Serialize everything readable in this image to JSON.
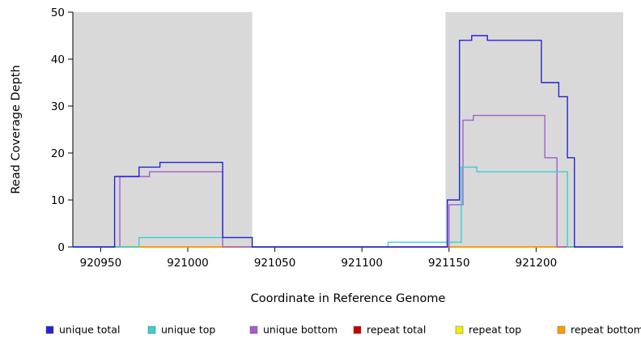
{
  "figure": {
    "background": "#ffffff"
  },
  "chart_data": {
    "type": "line",
    "title": "",
    "xlabel": "Coordinate in Reference Genome",
    "ylabel": "Read Coverage Depth",
    "xlim": [
      920934,
      921250
    ],
    "ylim": [
      0,
      50
    ],
    "xticks": [
      920950,
      921000,
      921050,
      921100,
      921150,
      921200
    ],
    "yticks": [
      0,
      10,
      20,
      30,
      40,
      50
    ],
    "grid": false,
    "legend_position": "bottom",
    "shade_color": "#d9d9d9",
    "shaded_regions": [
      [
        920934,
        921037
      ],
      [
        921148,
        921250
      ]
    ],
    "series": [
      {
        "name": "unique total",
        "color": "#2424cf",
        "points": [
          [
            920934,
            0
          ],
          [
            920958,
            0
          ],
          [
            920958,
            15
          ],
          [
            920972,
            15
          ],
          [
            920972,
            17
          ],
          [
            920984,
            17
          ],
          [
            920984,
            18
          ],
          [
            921020,
            18
          ],
          [
            921020,
            2
          ],
          [
            921037,
            2
          ],
          [
            921037,
            0
          ],
          [
            921149,
            0
          ],
          [
            921149,
            10
          ],
          [
            921156,
            10
          ],
          [
            921156,
            44
          ],
          [
            921163,
            44
          ],
          [
            921163,
            45
          ],
          [
            921172,
            45
          ],
          [
            921172,
            44
          ],
          [
            921203,
            44
          ],
          [
            921203,
            35
          ],
          [
            921213,
            35
          ],
          [
            921213,
            32
          ],
          [
            921218,
            32
          ],
          [
            921218,
            19
          ],
          [
            921222,
            19
          ],
          [
            921222,
            0
          ],
          [
            921250,
            0
          ]
        ]
      },
      {
        "name": "unique top",
        "color": "#3bcfcf",
        "points": [
          [
            920934,
            0
          ],
          [
            920972,
            0
          ],
          [
            920972,
            2
          ],
          [
            921037,
            2
          ],
          [
            921037,
            0
          ],
          [
            921115,
            0
          ],
          [
            921115,
            1
          ],
          [
            921157,
            1
          ],
          [
            921157,
            17
          ],
          [
            921166,
            17
          ],
          [
            921166,
            16
          ],
          [
            921218,
            16
          ],
          [
            921218,
            0
          ],
          [
            921250,
            0
          ]
        ]
      },
      {
        "name": "unique bottom",
        "color": "#a05fd0",
        "points": [
          [
            920934,
            0
          ],
          [
            920961,
            0
          ],
          [
            920961,
            15
          ],
          [
            920978,
            15
          ],
          [
            920978,
            16
          ],
          [
            921020,
            16
          ],
          [
            921020,
            0
          ],
          [
            921150,
            0
          ],
          [
            921150,
            9
          ],
          [
            921158,
            9
          ],
          [
            921158,
            27
          ],
          [
            921164,
            27
          ],
          [
            921164,
            28
          ],
          [
            921205,
            28
          ],
          [
            921205,
            19
          ],
          [
            921212,
            19
          ],
          [
            921212,
            0
          ],
          [
            921250,
            0
          ]
        ]
      },
      {
        "name": "repeat total",
        "color": "#c80000",
        "points": [
          [
            920934,
            0
          ],
          [
            921250,
            0
          ]
        ]
      },
      {
        "name": "repeat top",
        "color": "#f0f000",
        "points": [
          [
            920934,
            0
          ],
          [
            921250,
            0
          ]
        ]
      },
      {
        "name": "repeat bottom",
        "color": "#ff9a00",
        "points": [
          [
            920934,
            0
          ],
          [
            921250,
            0
          ]
        ]
      }
    ]
  }
}
